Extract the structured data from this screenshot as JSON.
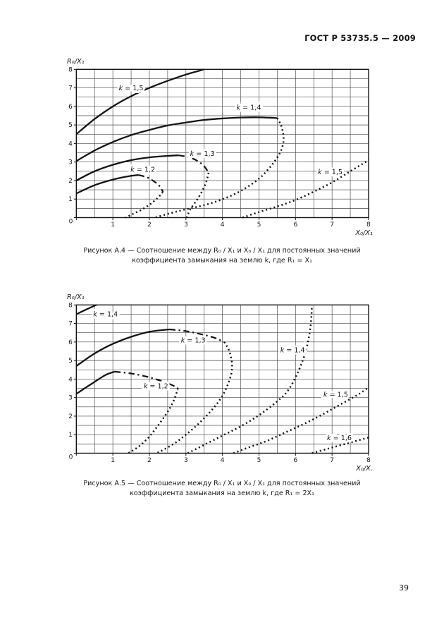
{
  "page": {
    "header_title": "ГОСТ Р 53735.5 — 2009",
    "page_number": "39"
  },
  "figures": {
    "a4": {
      "caption_line1": "Рисунок А.4 — Соотношение между R₀ / X₁ и X₀ / X₁ для постоянных значений",
      "caption_line2": "коэффициента замыкания на землю k, где R₁ = X₁"
    },
    "a5": {
      "caption_line1": "Рисунок А.5 — Соотношение между R₀ / X₁ и X₀ / X₁ для постоянных значений",
      "caption_line2": "коэффициента замыкания на землю k, где R₁ = 2X₁"
    }
  },
  "chart_data": [
    {
      "id": "a4",
      "type": "line",
      "title": "",
      "xlabel": "X₀/X₁",
      "ylabel": "R₀/X₁",
      "xlim": [
        0,
        8
      ],
      "ylim": [
        0,
        8
      ],
      "grid_step": 0.5,
      "grid": true,
      "x_ticks": [
        0,
        1,
        2,
        3,
        4,
        5,
        6,
        7,
        8
      ],
      "y_ticks": [
        0,
        1,
        2,
        3,
        4,
        5,
        6,
        7,
        8
      ],
      "colors": {
        "ink": "#141414",
        "grid": "#474747"
      },
      "series": [
        {
          "name": "k = 1,5 upper",
          "k": "1,5",
          "style": "solid",
          "points": [
            [
              0,
              4.5
            ],
            [
              0.5,
              5.32
            ],
            [
              1,
              6.0
            ],
            [
              1.5,
              6.55
            ],
            [
              2,
              7.0
            ],
            [
              2.5,
              7.38
            ],
            [
              3,
              7.72
            ],
            [
              3.5,
              8.0
            ]
          ]
        },
        {
          "name": "k = 1,4 upper",
          "k": "1,4",
          "style": "solid",
          "points": [
            [
              0,
              3.05
            ],
            [
              0.5,
              3.62
            ],
            [
              1,
              4.08
            ],
            [
              1.5,
              4.45
            ],
            [
              2,
              4.73
            ],
            [
              2.5,
              4.97
            ],
            [
              3,
              5.13
            ],
            [
              3.5,
              5.27
            ],
            [
              4,
              5.35
            ],
            [
              4.5,
              5.4
            ],
            [
              5,
              5.41
            ],
            [
              5.5,
              5.37
            ]
          ]
        },
        {
          "name": "k = 1,4 lower",
          "k": "1,4",
          "style": "dotted",
          "points": [
            [
              5.5,
              5.37
            ],
            [
              5.6,
              5.0
            ],
            [
              5.66,
              4.55
            ],
            [
              5.67,
              4.1
            ],
            [
              5.6,
              3.6
            ],
            [
              5.45,
              3.1
            ],
            [
              5.25,
              2.6
            ],
            [
              5.0,
              2.1
            ],
            [
              4.6,
              1.55
            ],
            [
              4.2,
              1.15
            ],
            [
              3.8,
              0.85
            ],
            [
              3.4,
              0.62
            ],
            [
              3.0,
              0.45
            ],
            [
              2.6,
              0.25
            ],
            [
              2.15,
              0.0
            ]
          ]
        },
        {
          "name": "k = 1,3 upper",
          "k": "1,3",
          "style": "solid",
          "points": [
            [
              0,
              2.0
            ],
            [
              0.5,
              2.5
            ],
            [
              1,
              2.85
            ],
            [
              1.5,
              3.1
            ],
            [
              2,
              3.25
            ],
            [
              2.5,
              3.33
            ],
            [
              2.8,
              3.36
            ]
          ]
        },
        {
          "name": "k = 1,3 descent",
          "k": "1,3",
          "style": "dashdot",
          "points": [
            [
              2.8,
              3.36
            ],
            [
              3.1,
              3.25
            ],
            [
              3.35,
              3.02
            ],
            [
              3.52,
              2.72
            ],
            [
              3.62,
              2.42
            ]
          ]
        },
        {
          "name": "k = 1,3 lower",
          "k": "1,3",
          "style": "dotted",
          "points": [
            [
              3.62,
              2.42
            ],
            [
              3.56,
              1.95
            ],
            [
              3.45,
              1.45
            ],
            [
              3.3,
              0.95
            ],
            [
              3.12,
              0.45
            ],
            [
              3.02,
              0.0
            ]
          ]
        },
        {
          "name": "k = 1,2 upper",
          "k": "1,2",
          "style": "solid",
          "points": [
            [
              0,
              1.3
            ],
            [
              0.5,
              1.75
            ],
            [
              1,
              2.05
            ],
            [
              1.4,
              2.22
            ],
            [
              1.7,
              2.3
            ]
          ]
        },
        {
          "name": "k = 1,2 descent",
          "k": "1,2",
          "style": "dashdot",
          "points": [
            [
              1.7,
              2.3
            ],
            [
              1.95,
              2.16
            ],
            [
              2.15,
              1.92
            ],
            [
              2.3,
              1.65
            ],
            [
              2.37,
              1.38
            ]
          ]
        },
        {
          "name": "k = 1,2 lower",
          "k": "1,2",
          "style": "dotted",
          "points": [
            [
              2.37,
              1.38
            ],
            [
              2.22,
              1.05
            ],
            [
              2.02,
              0.72
            ],
            [
              1.78,
              0.42
            ],
            [
              1.55,
              0.2
            ],
            [
              1.35,
              0.0
            ]
          ]
        },
        {
          "name": "k = 1,5 lower",
          "k": "1,5",
          "style": "dotted",
          "points": [
            [
              4.55,
              0.0
            ],
            [
              5.0,
              0.3
            ],
            [
              5.5,
              0.6
            ],
            [
              6.0,
              0.95
            ],
            [
              6.5,
              1.4
            ],
            [
              7.0,
              1.9
            ],
            [
              7.5,
              2.5
            ],
            [
              8.0,
              3.1
            ]
          ]
        }
      ],
      "labels": [
        {
          "text": "k = 1,5",
          "x": 1.5,
          "y": 6.98
        },
        {
          "text": "k = 1,4",
          "x": 4.72,
          "y": 5.93
        },
        {
          "text": "k = 1,3",
          "x": 3.45,
          "y": 3.45
        },
        {
          "text": "k = 1,2",
          "x": 1.82,
          "y": 2.58
        },
        {
          "text": "k = 1,5",
          "x": 6.95,
          "y": 2.45
        }
      ]
    },
    {
      "id": "a5",
      "type": "line",
      "title": "",
      "xlabel": "X₀/X.",
      "ylabel": "R₀/X₁",
      "xlim": [
        0,
        8
      ],
      "ylim": [
        0,
        8
      ],
      "grid_step": 0.5,
      "grid": true,
      "x_ticks": [
        0,
        1,
        2,
        3,
        4,
        5,
        6,
        7,
        8
      ],
      "y_ticks": [
        0,
        1,
        2,
        3,
        4,
        5,
        6,
        7,
        8
      ],
      "colors": {
        "ink": "#141414",
        "grid": "#474747"
      },
      "series": [
        {
          "name": "k = 1,4 upper-left",
          "k": "1,4",
          "style": "solid",
          "points": [
            [
              0,
              7.5
            ],
            [
              0.3,
              7.78
            ],
            [
              0.55,
              8.0
            ]
          ]
        },
        {
          "name": "k = 1,3 upper",
          "k": "1,3",
          "style": "solid",
          "points": [
            [
              0,
              4.7
            ],
            [
              0.5,
              5.38
            ],
            [
              1,
              5.9
            ],
            [
              1.5,
              6.28
            ],
            [
              2,
              6.55
            ],
            [
              2.55,
              6.68
            ]
          ]
        },
        {
          "name": "k = 1,3 descent",
          "k": "1,3",
          "style": "dashdot",
          "points": [
            [
              2.55,
              6.68
            ],
            [
              2.95,
              6.6
            ],
            [
              3.35,
              6.45
            ],
            [
              3.75,
              6.25
            ],
            [
              4.05,
              6.0
            ]
          ]
        },
        {
          "name": "k = 1,3 lower",
          "k": "1,3",
          "style": "dotted",
          "points": [
            [
              4.05,
              6.0
            ],
            [
              4.18,
              5.55
            ],
            [
              4.25,
              5.0
            ],
            [
              4.26,
              4.5
            ],
            [
              4.2,
              4.0
            ],
            [
              4.08,
              3.4
            ],
            [
              3.9,
              2.8
            ],
            [
              3.65,
              2.2
            ],
            [
              3.35,
              1.6
            ],
            [
              3.0,
              1.0
            ],
            [
              2.7,
              0.55
            ],
            [
              2.4,
              0.2
            ],
            [
              2.2,
              0.0
            ]
          ]
        },
        {
          "name": "k = 1,2 upper",
          "k": "1,2",
          "style": "solid",
          "points": [
            [
              0,
              3.2
            ],
            [
              0.4,
              3.72
            ],
            [
              0.8,
              4.22
            ],
            [
              1.05,
              4.4
            ]
          ]
        },
        {
          "name": "k = 1,2 descent",
          "k": "1,2",
          "style": "dashdot",
          "points": [
            [
              1.05,
              4.4
            ],
            [
              1.5,
              4.3
            ],
            [
              1.95,
              4.12
            ],
            [
              2.35,
              3.88
            ],
            [
              2.65,
              3.65
            ],
            [
              2.78,
              3.5
            ]
          ]
        },
        {
          "name": "k = 1,2 lower",
          "k": "1,2",
          "style": "dotted",
          "points": [
            [
              2.78,
              3.5
            ],
            [
              2.7,
              3.0
            ],
            [
              2.58,
              2.5
            ],
            [
              2.42,
              2.0
            ],
            [
              2.22,
              1.45
            ],
            [
              2.0,
              0.9
            ],
            [
              1.75,
              0.42
            ],
            [
              1.55,
              0.15
            ],
            [
              1.42,
              0.0
            ]
          ]
        },
        {
          "name": "k = 1,4 loop",
          "k": "1,4",
          "style": "dotted",
          "points": [
            [
              3.05,
              0.0
            ],
            [
              3.5,
              0.45
            ],
            [
              4.0,
              0.95
            ],
            [
              4.5,
              1.45
            ],
            [
              5.0,
              2.05
            ],
            [
              5.5,
              2.8
            ],
            [
              5.8,
              3.4
            ],
            [
              6.05,
              4.3
            ],
            [
              6.25,
              5.3
            ],
            [
              6.35,
              6.1
            ],
            [
              6.42,
              7.0
            ],
            [
              6.45,
              8.0
            ]
          ]
        },
        {
          "name": "k = 1,5 lower",
          "k": "1,5",
          "style": "dotted",
          "points": [
            [
              4.3,
              0.0
            ],
            [
              4.7,
              0.3
            ],
            [
              5.2,
              0.65
            ],
            [
              5.7,
              1.1
            ],
            [
              6.2,
              1.55
            ],
            [
              6.7,
              2.05
            ],
            [
              7.2,
              2.6
            ],
            [
              7.7,
              3.15
            ],
            [
              8.0,
              3.55
            ]
          ]
        },
        {
          "name": "k = 1,6 lower",
          "k": "1,6",
          "style": "dotted",
          "points": [
            [
              6.45,
              0.0
            ],
            [
              6.9,
              0.25
            ],
            [
              7.4,
              0.52
            ],
            [
              8.0,
              0.85
            ]
          ]
        }
      ],
      "labels": [
        {
          "text": "k = 1,4",
          "x": 0.8,
          "y": 7.5
        },
        {
          "text": "k = 1,3",
          "x": 3.2,
          "y": 6.08
        },
        {
          "text": "k = 1,2",
          "x": 2.18,
          "y": 3.62
        },
        {
          "text": "k = 1,4",
          "x": 5.92,
          "y": 5.55
        },
        {
          "text": "k = 1,5",
          "x": 7.1,
          "y": 3.15
        },
        {
          "text": "k = 1,6",
          "x": 7.2,
          "y": 0.82
        }
      ]
    }
  ]
}
